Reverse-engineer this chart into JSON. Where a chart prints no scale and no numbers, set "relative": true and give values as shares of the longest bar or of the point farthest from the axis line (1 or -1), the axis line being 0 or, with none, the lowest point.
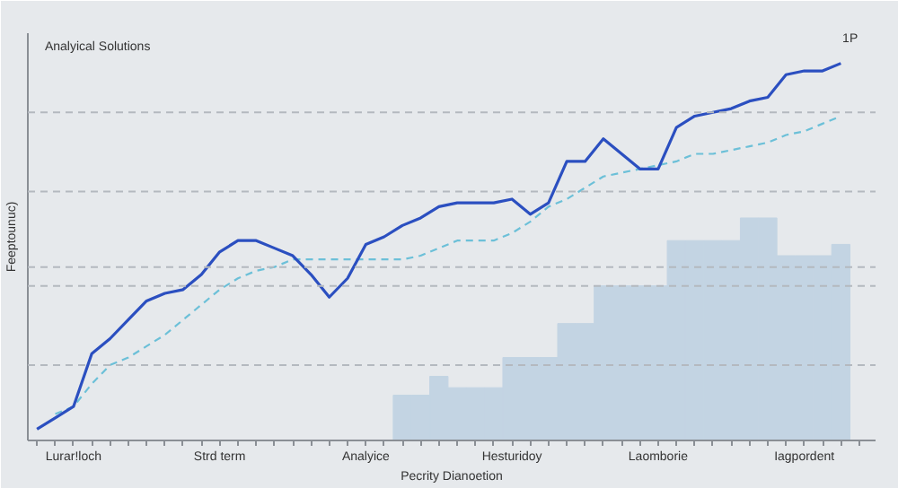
{
  "chart_data": {
    "type": "line",
    "relative": true,
    "xlabel": "Pecrity Dianoetion",
    "ylabel": "Feeptounuc)",
    "annotations": [
      "Analyical Solutions",
      "1P"
    ],
    "categories": [
      null,
      null,
      "Lurar!loch",
      null,
      null,
      null,
      null,
      null,
      null,
      null,
      "Strd term",
      null,
      null,
      null,
      null,
      null,
      null,
      null,
      "Analyice",
      null,
      null,
      null,
      null,
      null,
      null,
      null,
      "Hesturidoy",
      null,
      null,
      null,
      null,
      null,
      null,
      null,
      "Laomborie",
      null,
      null,
      null,
      null,
      null,
      null,
      null,
      "Iagpordent",
      null,
      null,
      null
    ],
    "ref_lines": [
      {
        "axis": "y",
        "value": 0.2,
        "color": "#b4b9bf",
        "line_style": "dashed"
      },
      {
        "axis": "y",
        "value": 0.41,
        "color": "#b4b9bf",
        "line_style": "dashed"
      },
      {
        "axis": "y",
        "value": 0.46,
        "color": "#b4b9bf",
        "line_style": "dashed"
      },
      {
        "axis": "y",
        "value": 0.66,
        "color": "#b4b9bf",
        "line_style": "dashed"
      },
      {
        "axis": "y",
        "value": 0.87,
        "color": "#b4b9bf",
        "line_style": "dashed"
      }
    ],
    "series": [
      {
        "type": "bar",
        "color": "#c3d4e3",
        "values": [
          null,
          null,
          null,
          null,
          null,
          null,
          null,
          null,
          null,
          null,
          null,
          null,
          null,
          null,
          null,
          null,
          null,
          null,
          null,
          null,
          0.12,
          0.12,
          0.17,
          0.14,
          0.14,
          0.14,
          0.22,
          0.22,
          0.22,
          0.31,
          0.31,
          0.41,
          0.41,
          0.41,
          0.41,
          0.53,
          0.53,
          0.53,
          0.53,
          0.59,
          0.59,
          0.49,
          0.49,
          0.49,
          0.52,
          null
        ]
      },
      {
        "color": "#6cc0d8",
        "line_style": "dashed",
        "values": [
          null,
          0.07,
          0.09,
          0.15,
          0.2,
          0.22,
          0.25,
          0.28,
          0.32,
          0.36,
          0.4,
          0.43,
          0.45,
          0.46,
          0.48,
          0.48,
          0.48,
          0.48,
          0.48,
          0.48,
          0.48,
          0.49,
          0.51,
          0.53,
          0.53,
          0.53,
          0.55,
          0.58,
          0.62,
          0.64,
          0.67,
          0.7,
          0.71,
          0.72,
          0.73,
          0.74,
          0.76,
          0.76,
          0.77,
          0.78,
          0.79,
          0.81,
          0.82,
          0.84,
          0.86,
          null
        ]
      },
      {
        "color": "#2b4fc0",
        "line_style": "solid",
        "values": [
          0.03,
          0.06,
          0.09,
          0.23,
          0.27,
          0.32,
          0.37,
          0.39,
          0.4,
          0.44,
          0.5,
          0.53,
          0.53,
          0.51,
          0.49,
          0.44,
          0.38,
          0.43,
          0.52,
          0.54,
          0.57,
          0.59,
          0.62,
          0.63,
          0.63,
          0.63,
          0.64,
          0.6,
          0.63,
          0.74,
          0.74,
          0.8,
          0.76,
          0.72,
          0.72,
          0.83,
          0.86,
          0.87,
          0.88,
          0.9,
          0.91,
          0.97,
          0.98,
          0.98,
          1.0,
          null
        ]
      }
    ]
  }
}
